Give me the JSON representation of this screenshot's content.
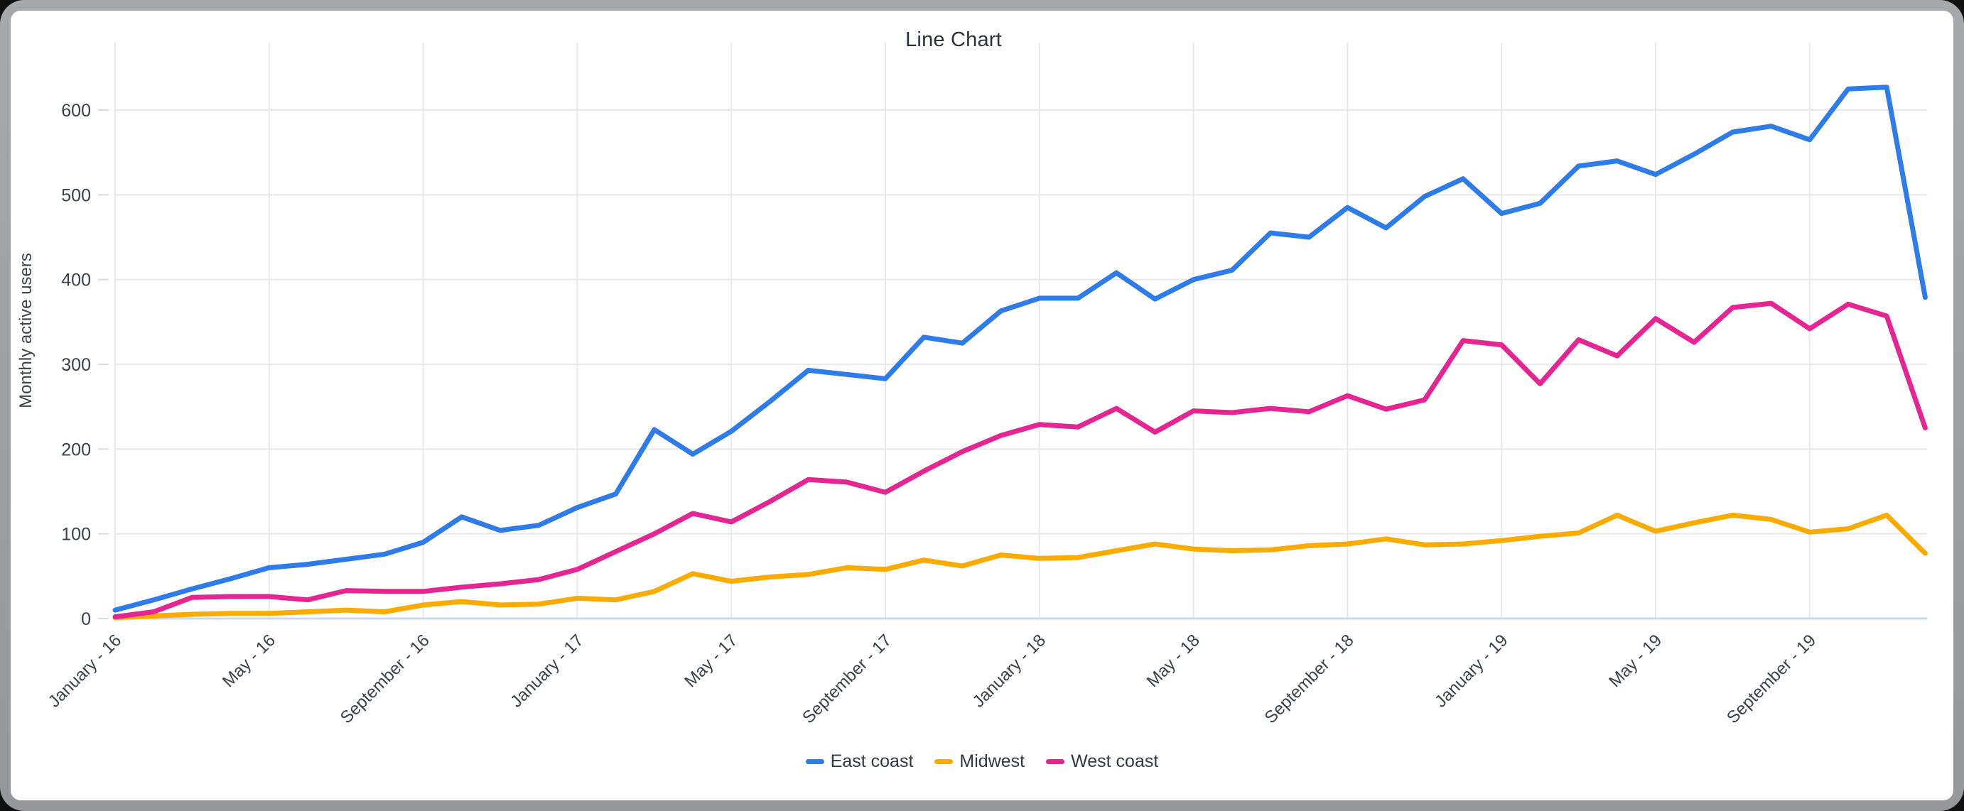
{
  "window": {
    "title": "Line Chart"
  },
  "colors": {
    "east_coast": "#2E7CEA",
    "midwest": "#F9AB00",
    "west_coast": "#E52592",
    "gridline": "#e7e9eb",
    "baseline": "#ccd8f0",
    "tick": "#dadce0",
    "axis_text": "#3a434b",
    "title_text": "#2b323a",
    "frame_gray": "#9c9ea1",
    "card_bg": "#ffffff"
  },
  "chart_data": {
    "type": "line",
    "title": "Line Chart",
    "xlabel": "",
    "ylabel": "Monthly active users",
    "ylim": [
      0,
      650
    ],
    "yticks": [
      0,
      100,
      200,
      300,
      400,
      500,
      600
    ],
    "grid": true,
    "legend_position": "bottom",
    "x_tick_every": 4,
    "x_ticks_shown": [
      "January - 16",
      "May - 16",
      "September - 16",
      "January - 17",
      "May - 17",
      "September - 17",
      "January - 18",
      "May - 18",
      "September - 18",
      "January - 19",
      "May - 19",
      "September - 19"
    ],
    "categories": [
      "Jan-16",
      "Feb-16",
      "Mar-16",
      "Apr-16",
      "May-16",
      "Jun-16",
      "Jul-16",
      "Aug-16",
      "Sep-16",
      "Oct-16",
      "Nov-16",
      "Dec-16",
      "Jan-17",
      "Feb-17",
      "Mar-17",
      "Apr-17",
      "May-17",
      "Jun-17",
      "Jul-17",
      "Aug-17",
      "Sep-17",
      "Oct-17",
      "Nov-17",
      "Dec-17",
      "Jan-18",
      "Feb-18",
      "Mar-18",
      "Apr-18",
      "May-18",
      "Jun-18",
      "Jul-18",
      "Aug-18",
      "Sep-18",
      "Oct-18",
      "Nov-18",
      "Dec-18",
      "Jan-19",
      "Feb-19",
      "Mar-19",
      "Apr-19",
      "May-19",
      "Jun-19",
      "Jul-19",
      "Aug-19",
      "Sep-19",
      "Oct-19",
      "Nov-19",
      "Dec-19"
    ],
    "series": [
      {
        "name": "East coast",
        "color": "#2E7CEA",
        "values": [
          10,
          22,
          35,
          47,
          60,
          64,
          70,
          76,
          90,
          120,
          104,
          110,
          131,
          147,
          223,
          194,
          221,
          256,
          293,
          288,
          283,
          332,
          325,
          363,
          378,
          378,
          408,
          377,
          400,
          411,
          455,
          450,
          485,
          461,
          498,
          519,
          478,
          490,
          534,
          540,
          524,
          548,
          574,
          581,
          565,
          625,
          627,
          379
        ]
      },
      {
        "name": "Midwest",
        "color": "#F9AB00",
        "values": [
          1,
          3,
          5,
          6,
          6,
          8,
          10,
          8,
          16,
          20,
          16,
          17,
          24,
          22,
          32,
          53,
          44,
          49,
          52,
          60,
          58,
          69,
          62,
          75,
          71,
          72,
          80,
          88,
          82,
          80,
          81,
          86,
          88,
          94,
          87,
          88,
          92,
          97,
          101,
          122,
          103,
          113,
          122,
          117,
          102,
          106,
          122,
          77
        ]
      },
      {
        "name": "West coast",
        "color": "#E52592",
        "values": [
          2,
          8,
          25,
          26,
          26,
          22,
          33,
          32,
          32,
          37,
          41,
          46,
          58,
          79,
          100,
          124,
          114,
          138,
          164,
          161,
          149,
          174,
          197,
          216,
          229,
          226,
          248,
          220,
          245,
          243,
          248,
          244,
          263,
          247,
          258,
          328,
          323,
          277,
          329,
          310,
          354,
          326,
          367,
          372,
          342,
          371,
          357,
          225
        ]
      }
    ]
  }
}
